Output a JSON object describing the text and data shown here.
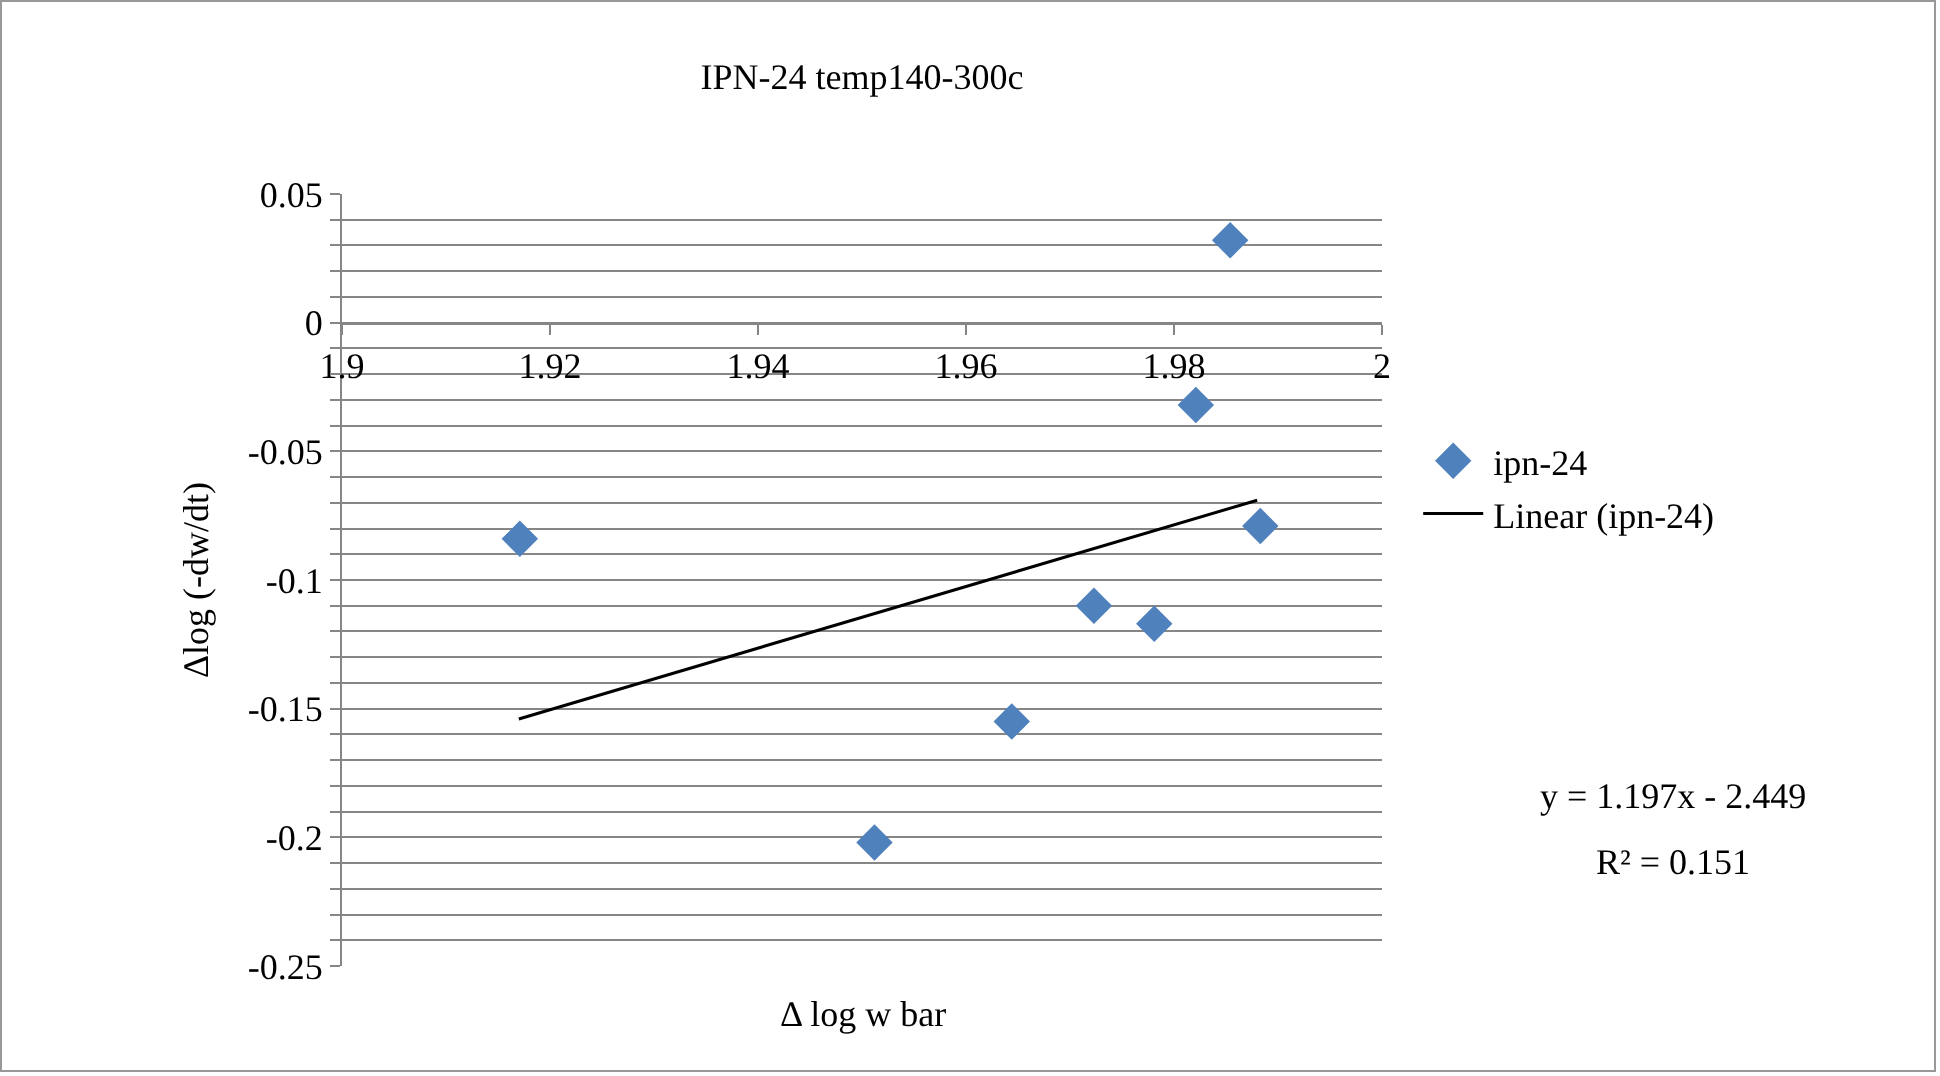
{
  "chart_data": {
    "type": "scatter",
    "title": "IPN-24 temp140-300c",
    "xlabel": "Δ log w bar",
    "ylabel": "Δlog (-dw/dt)",
    "series": [
      {
        "name": "ipn-24",
        "color": "#4f81bd",
        "marker": "diamond",
        "x": [
          1.9171,
          1.9512,
          1.9644,
          1.9723,
          1.9781,
          1.9821,
          1.9854,
          1.9883
        ],
        "values": [
          -0.084,
          -0.202,
          -0.155,
          -0.11,
          -0.117,
          -0.032,
          0.032,
          -0.079
        ]
      },
      {
        "name": "Linear (ipn-24)",
        "type": "line",
        "color": "#000000",
        "line_style": "solid",
        "x": [
          1.917,
          1.988
        ],
        "values": [
          -0.154,
          -0.069
        ]
      }
    ],
    "xlim": [
      1.9,
      2
    ],
    "xticks": [
      1.9,
      1.92,
      1.94,
      1.96,
      1.98,
      2
    ],
    "ylim": [
      -0.25,
      0.05
    ],
    "yticks": [
      0.05,
      {
        "value": 0.04,
        "label": null
      },
      {
        "value": 0.03,
        "label": null
      },
      {
        "value": 0.02,
        "label": null
      },
      {
        "value": 0.01,
        "label": null
      },
      0,
      {
        "value": -0.01,
        "label": null
      },
      {
        "value": -0.02,
        "label": null
      },
      {
        "value": -0.03,
        "label": null
      },
      {
        "value": -0.04,
        "label": null
      },
      -0.05,
      {
        "value": -0.06,
        "label": null
      },
      {
        "value": -0.07,
        "label": null
      },
      {
        "value": -0.08,
        "label": null
      },
      {
        "value": -0.09,
        "label": null
      },
      -0.1,
      {
        "value": -0.11,
        "label": null
      },
      {
        "value": -0.12,
        "label": null
      },
      {
        "value": -0.13,
        "label": null
      },
      {
        "value": -0.14,
        "label": null
      },
      -0.15,
      {
        "value": -0.16,
        "label": null
      },
      {
        "value": -0.17,
        "label": null
      },
      {
        "value": -0.18,
        "label": null
      },
      {
        "value": -0.19,
        "label": null
      },
      -0.2,
      {
        "value": -0.21,
        "label": null
      },
      {
        "value": -0.22,
        "label": null
      },
      {
        "value": -0.23,
        "label": null
      },
      {
        "value": -0.24,
        "label": null
      },
      -0.25
    ],
    "grid": "y",
    "legend": "right",
    "annotations": [
      "y = 1.197x - 2.449",
      "R² = 0.151"
    ]
  }
}
